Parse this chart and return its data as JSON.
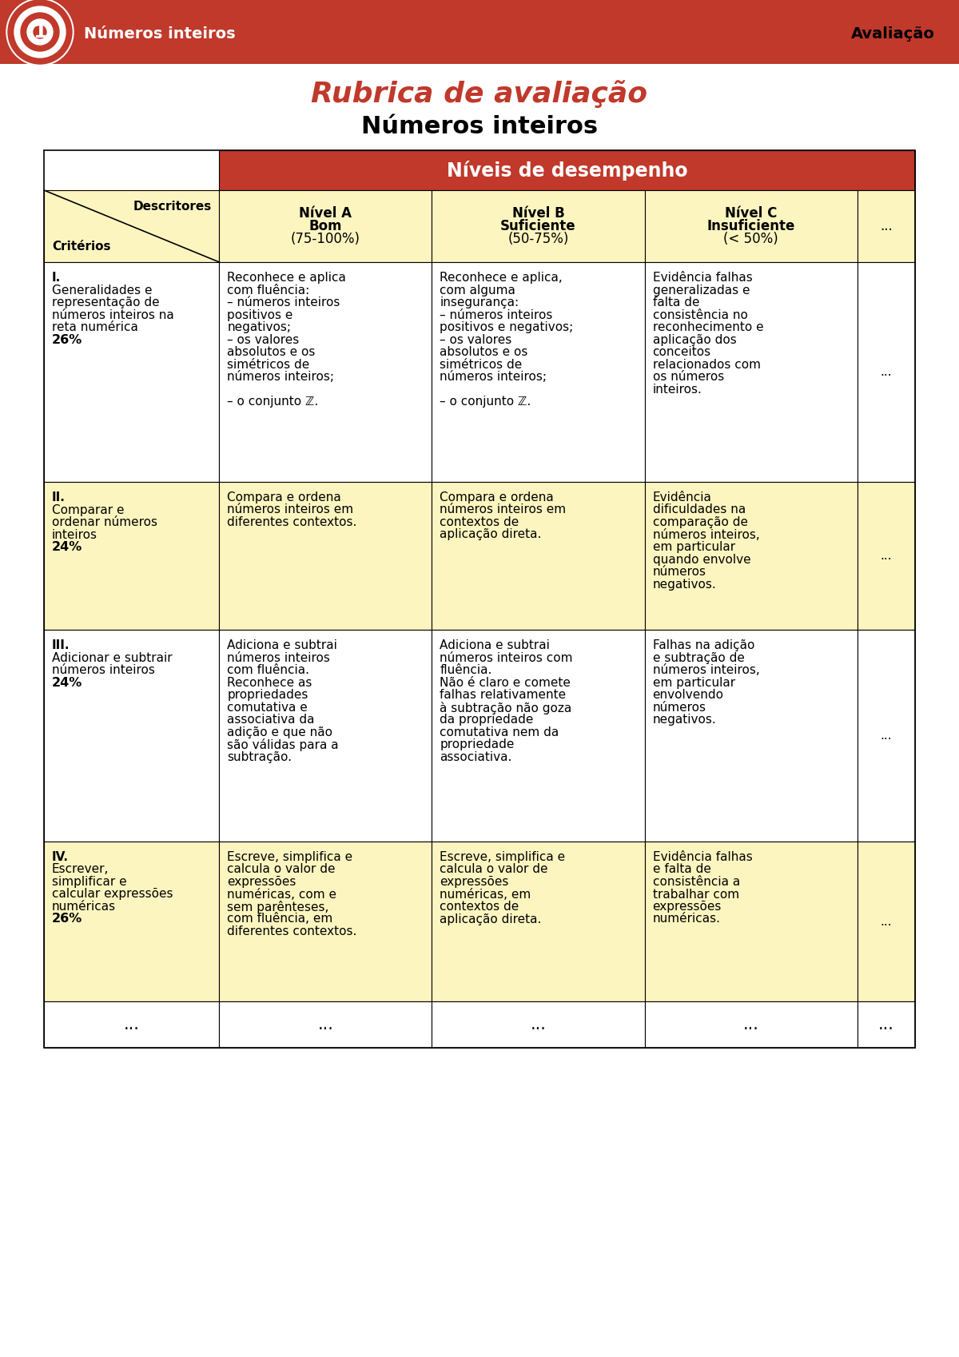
{
  "title_main": "Rubrica de avaliação",
  "title_sub": "Números inteiros",
  "header_banner_text": "Números inteiros",
  "header_banner_right": "Avaliação",
  "banner_color": "#c0392b",
  "header_red": "#c0392b",
  "cell_yellow": "#fdf5c0",
  "cell_white": "#ffffff",
  "text_black": "#000000",
  "text_white": "#ffffff",
  "text_red": "#c0392b",
  "nivels_header": "Níveis de desempenho",
  "col_headers": [
    "",
    "Nível A\nBom\n(75-100%)",
    "Nível B\nSuficiente\n(50-75%)",
    "Nível C\nInsuficiente\n(< 50%)",
    "..."
  ],
  "row_header_diag": [
    "Descritores",
    "Critérios"
  ],
  "rows": [
    {
      "bg": "#ffffff",
      "criterion": "I.\nGeneralidades e\nrepresentação de\nnúmeros inteiros na\nreta numérica\n26%",
      "nivel_a": "Reconhece e aplica\ncom fluência:\n– números inteiros\npositivos e\nnegativos;\n– os valores\nabsolutos e os\nsimétricos de\nnúmeros inteiros;\n\n– o conjunto ℤ.",
      "nivel_b": "Reconhece e aplica,\ncom alguma\ninsegurança:\n– números inteiros\npositivos e negativos;\n– os valores\nabsolutos e os\nsimétricos de\nnúmeros inteiros;\n\n– o conjunto ℤ.",
      "nivel_c": "Evidência falhas\ngeneralizadas e\nfalta de\nconsistência no\nreconhecimento e\naplicação dos\nconceitos\nrelacionados com\nos números\ninteiros.",
      "dots": "..."
    },
    {
      "bg": "#fdf5c0",
      "criterion": "II.\nComparar e\nordenar números\ninteiros\n24%",
      "nivel_a": "Compara e ordena\nnúmeros inteiros em\ndiferentes contextos.",
      "nivel_b": "Compara e ordena\nnúmeros inteiros em\ncontextos de\naplicação direta.",
      "nivel_c": "Evidência\ndificuldades na\ncomparação de\nnúmeros inteiros,\nem particular\nquando envolve\nnúmeros\nnegativos.",
      "dots": "..."
    },
    {
      "bg": "#ffffff",
      "criterion": "III.\nAdicionar e subtrair\nnúmeros inteiros\n24%",
      "nivel_a": "Adiciona e subtrai\nnúmeros inteiros\ncom fluência.\nReconhece as\npropriedades\ncomutativa e\nassociativa da\nadição e que não\nsão válidas para a\nsubtração.",
      "nivel_b": "Adiciona e subtrai\nnúmeros inteiros com\nfluência.\nNão é claro e comete\nfalhas relativamente\nà subtração não goza\nda propriedade\ncomutativa nem da\npropriedade\nassociativa.",
      "nivel_c": "Falhas na adição\ne subtração de\nnúmeros inteiros,\nem particular\nenvolvendo\nnúmeros\nnegativos.",
      "dots": "..."
    },
    {
      "bg": "#fdf5c0",
      "criterion": "IV.\nEscrever,\nsimplificar e\ncalcular expressões\nnuméricas\n26%",
      "nivel_a": "Escreve, simplifica e\ncalcula o valor de\nexpressões\nnuméricas, com e\nsem parênteses,\ncom fluência, em\ndiferentes contextos.",
      "nivel_b": "Escreve, simplifica e\ncalcula o valor de\nexpressões\nnuméricas, em\ncontextos de\naplicação direta.",
      "nivel_c": "Evidência falhas\ne falta de\nconsistência a\ntrabalhar com\nexpressões\nnuméricas.",
      "dots": "..."
    },
    {
      "bg": "#ffffff",
      "criterion": "...",
      "nivel_a": "...",
      "nivel_b": "...",
      "nivel_c": "...",
      "dots": "..."
    }
  ]
}
